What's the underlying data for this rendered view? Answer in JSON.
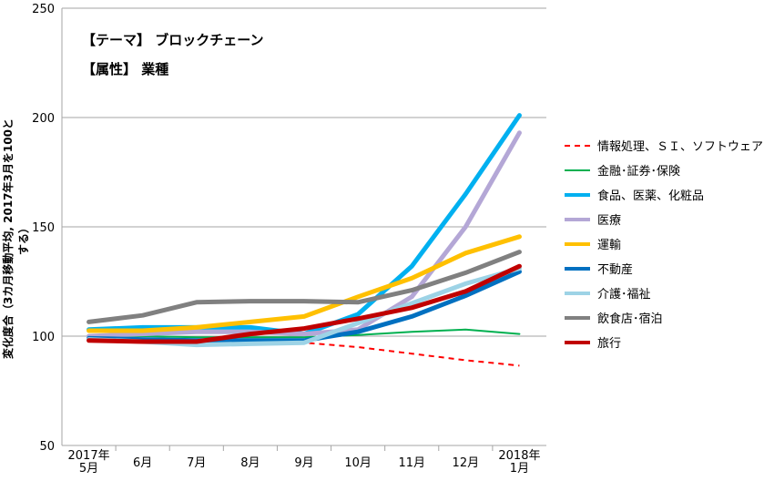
{
  "chart_data": {
    "type": "line",
    "annotations": [
      "【テーマ】 ブロックチェーン",
      "【属性】 業種"
    ],
    "ylabel": "変化度合（3カ月移動平均, 2017年3月を100とする）",
    "xlabel": "",
    "ylim": [
      50,
      250
    ],
    "yticks": [
      50,
      100,
      150,
      200,
      250
    ],
    "grid": true,
    "legend_position": "right",
    "categories": [
      [
        "2017年",
        "5月"
      ],
      [
        "6月"
      ],
      [
        "7月"
      ],
      [
        "8月"
      ],
      [
        "9月"
      ],
      [
        "10月"
      ],
      [
        "11月"
      ],
      [
        "12月"
      ],
      [
        "2018年",
        "1月"
      ]
    ],
    "series": [
      {
        "name": "情報処理、ＳＩ、ソフトウェア",
        "color": "#FF0000",
        "dashed": true,
        "width": 2,
        "values": [
          99,
          98.5,
          98,
          97.5,
          97,
          95,
          92,
          89,
          86.5
        ]
      },
      {
        "name": "金融･証券･保険",
        "color": "#00B050",
        "width": 2,
        "values": [
          100,
          100,
          99.5,
          99.5,
          99.5,
          100.5,
          102,
          103,
          101
        ]
      },
      {
        "name": "食品、医薬、化粧品",
        "color": "#00B0F0",
        "width": 5,
        "values": [
          103,
          104,
          104,
          104,
          101,
          110,
          132,
          165,
          201
        ]
      },
      {
        "name": "医療",
        "color": "#B4A7D6",
        "width": 5,
        "values": [
          100,
          101,
          102,
          102,
          101,
          103,
          118,
          150,
          193
        ]
      },
      {
        "name": "運輸",
        "color": "#FFC000",
        "width": 5,
        "values": [
          102.5,
          102.5,
          104,
          106.5,
          109,
          118,
          126.5,
          138,
          145.5
        ]
      },
      {
        "name": "不動産",
        "color": "#0070C0",
        "width": 5,
        "values": [
          99,
          98.5,
          98,
          98,
          98,
          102,
          109,
          118.5,
          129.5
        ]
      },
      {
        "name": "介護･福祉",
        "color": "#9DD3E6",
        "width": 5,
        "values": [
          98.5,
          97.5,
          96,
          96.5,
          97,
          106,
          115,
          124,
          131
        ]
      },
      {
        "name": "飲食店･宿泊",
        "color": "#808080",
        "width": 5,
        "values": [
          106.5,
          109.5,
          115.5,
          116,
          116,
          115.5,
          121,
          129,
          138.5
        ]
      },
      {
        "name": "旅行",
        "color": "#C00000",
        "width": 5,
        "values": [
          98,
          97.5,
          97.5,
          101,
          103.5,
          108,
          113,
          120.5,
          132
        ]
      }
    ]
  }
}
